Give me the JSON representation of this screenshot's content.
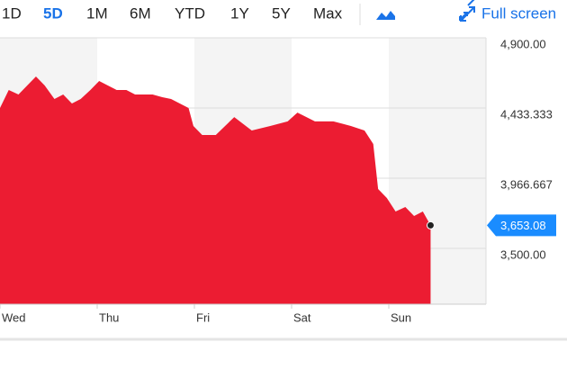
{
  "toolbar": {
    "ranges": [
      "1D",
      "5D",
      "1M",
      "6M",
      "YTD",
      "1Y",
      "5Y",
      "Max"
    ],
    "active": 1,
    "full_screen": "Full screen"
  },
  "chart_data": {
    "type": "area",
    "color": "#ec1c32",
    "x": [
      0,
      0.09,
      0.19,
      0.28,
      0.37,
      0.46,
      0.56,
      0.65,
      0.74,
      0.83,
      0.93,
      1.02,
      1.11,
      1.2,
      1.3,
      1.39,
      1.48,
      1.57,
      1.67,
      1.76,
      1.85,
      1.94,
      1.99,
      2.08,
      2.22,
      2.41,
      2.59,
      2.78,
      2.96,
      3.06,
      3.24,
      3.43,
      3.61,
      3.75,
      3.84,
      3.89,
      3.98,
      4.07,
      4.17,
      4.26,
      4.35,
      4.43
    ],
    "values": [
      4433,
      4553,
      4523,
      4583,
      4643,
      4583,
      4493,
      4523,
      4463,
      4493,
      4553,
      4613,
      4583,
      4553,
      4553,
      4523,
      4523,
      4523,
      4505,
      4493,
      4463,
      4433,
      4314,
      4254,
      4254,
      4373,
      4284,
      4314,
      4344,
      4403,
      4344,
      4344,
      4314,
      4284,
      4194,
      3895,
      3835,
      3745,
      3775,
      3715,
      3745,
      3653.08
    ],
    "current": {
      "value": 3653.08,
      "label": "3,653.08"
    },
    "xlim": [
      0,
      5
    ],
    "ylim": [
      3129,
      4900
    ],
    "xticks": [
      {
        "value": 0,
        "label": "Wed"
      },
      {
        "value": 1,
        "label": "Thu"
      },
      {
        "value": 2,
        "label": "Fri"
      },
      {
        "value": 3,
        "label": "Sat"
      },
      {
        "value": 4,
        "label": "Sun"
      }
    ],
    "yticks": [
      {
        "value": 4900,
        "label": "4,900.00"
      },
      {
        "value": 4433.333,
        "label": "4,433.333"
      },
      {
        "value": 3966.667,
        "label": "3,966.667"
      },
      {
        "value": 3500,
        "label": "3,500.00"
      }
    ]
  }
}
